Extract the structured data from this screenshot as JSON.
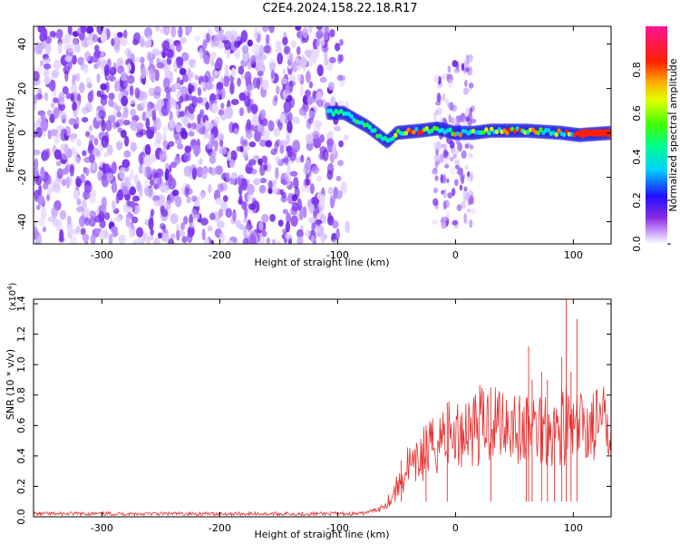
{
  "title": "C2E4.2024.158.22.18.R17",
  "colorbar": {
    "label": "Normalized spectral amplitude",
    "ticks": [
      0.0,
      0.2,
      0.4,
      0.6,
      0.8
    ],
    "tick_labels": [
      "0.0",
      "0.2",
      "0.4",
      "0.6",
      "0.8"
    ]
  },
  "chart_data": [
    {
      "type": "heatmap",
      "xlabel": "Height of straight line (km)",
      "ylabel": "Frequency (Hz)",
      "xlim": [
        -358,
        132
      ],
      "ylim": [
        -50,
        48
      ],
      "xticks": [
        -300,
        -200,
        -100,
        0,
        100
      ],
      "xtick_labels": [
        "-300",
        "-200",
        "-100",
        "0",
        "100"
      ],
      "yticks": [
        -40,
        -20,
        0,
        20,
        40
      ],
      "ytick_labels": [
        "-40",
        "-20",
        "0",
        "20",
        "40"
      ],
      "noise_region_x": [
        -358,
        -90
      ],
      "burst_region_x": [
        -18,
        15
      ],
      "signal_ridge": [
        {
          "x": -108,
          "y": 9
        },
        {
          "x": -95,
          "y": 9
        },
        {
          "x": -85,
          "y": 6
        },
        {
          "x": -75,
          "y": 3
        },
        {
          "x": -65,
          "y": -1
        },
        {
          "x": -58,
          "y": -4
        },
        {
          "x": -50,
          "y": 0
        },
        {
          "x": -30,
          "y": 1
        },
        {
          "x": -15,
          "y": 2
        },
        {
          "x": 0,
          "y": 0
        },
        {
          "x": 15,
          "y": 0
        },
        {
          "x": 30,
          "y": 1
        },
        {
          "x": 60,
          "y": 1
        },
        {
          "x": 90,
          "y": 0
        },
        {
          "x": 105,
          "y": -1
        },
        {
          "x": 132,
          "y": 0
        }
      ]
    },
    {
      "type": "line",
      "xlabel": "Height of straight line (km)",
      "ylabel": "SNR (10 * v/v)",
      "y_multiplier_label": "(x10",
      "y_multiplier_exp": "4",
      "xlim": [
        -358,
        132
      ],
      "ylim": [
        0,
        1.43
      ],
      "xticks": [
        -300,
        -200,
        -100,
        0,
        100
      ],
      "xtick_labels": [
        "-300",
        "-200",
        "-100",
        "0",
        "100"
      ],
      "yticks": [
        0.0,
        0.2,
        0.4,
        0.6,
        0.8,
        1.0,
        1.2,
        1.4
      ],
      "ytick_labels": [
        "0.0",
        "0.2",
        "0.4",
        "0.6",
        "0.8",
        "1.0",
        "1.2",
        "1.4"
      ],
      "series": [
        {
          "color": "#e83030",
          "x": [
            -358,
            -300,
            -250,
            -200,
            -150,
            -100,
            -80,
            -65,
            -55,
            -45,
            -40,
            -35,
            -30,
            -20,
            -10,
            0,
            10,
            20,
            30,
            40,
            50,
            55,
            60,
            65,
            70,
            75,
            80,
            85,
            90,
            95,
            100,
            105,
            110,
            120,
            132
          ],
          "y": [
            0.02,
            0.02,
            0.02,
            0.02,
            0.02,
            0.02,
            0.02,
            0.05,
            0.12,
            0.25,
            0.35,
            0.3,
            0.4,
            0.45,
            0.55,
            0.52,
            0.6,
            0.6,
            0.62,
            0.65,
            0.62,
            0.55,
            0.55,
            0.58,
            0.6,
            0.6,
            0.62,
            0.55,
            0.62,
            0.6,
            0.55,
            0.58,
            0.6,
            0.6,
            0.6
          ]
        }
      ],
      "spikes": [
        {
          "x": -46,
          "y": 0.37
        },
        {
          "x": -25,
          "y": 0.6
        },
        {
          "x": -7,
          "y": 0.75
        },
        {
          "x": 30,
          "y": 0.85
        },
        {
          "x": 60,
          "y": 0.78
        },
        {
          "x": 62,
          "y": 1.12
        },
        {
          "x": 65,
          "y": 0.9
        },
        {
          "x": 73,
          "y": 0.95
        },
        {
          "x": 78,
          "y": 0.9
        },
        {
          "x": 84,
          "y": 0.62
        },
        {
          "x": 90,
          "y": 1.05
        },
        {
          "x": 94,
          "y": 1.43
        },
        {
          "x": 98,
          "y": 0.95
        },
        {
          "x": 103,
          "y": 1.3
        }
      ]
    }
  ]
}
